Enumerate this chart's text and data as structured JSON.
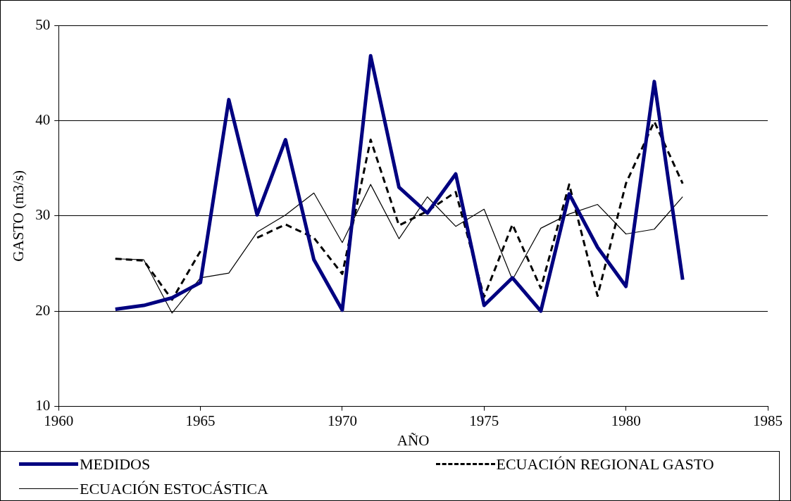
{
  "chart_data": {
    "type": "line",
    "xlabel": "AÑO",
    "ylabel": "GASTO (m3/s)",
    "x": [
      1962,
      1963,
      1964,
      1965,
      1966,
      1967,
      1968,
      1969,
      1970,
      1971,
      1972,
      1973,
      1974,
      1975,
      1976,
      1977,
      1978,
      1979,
      1980,
      1981,
      1982
    ],
    "xlim": [
      1960,
      1985
    ],
    "xticks": [
      1960,
      1965,
      1970,
      1975,
      1980,
      1985
    ],
    "ylim": [
      10,
      50
    ],
    "yticks": [
      10,
      20,
      30,
      40,
      50
    ],
    "grid": "y",
    "legend": "bottom",
    "marker": "none",
    "series": [
      {
        "name": "MEDIDOS",
        "color": "#000080",
        "line_style": "solid",
        "values": [
          20.2,
          20.6,
          21.4,
          23.0,
          42.2,
          30.1,
          38.0,
          25.4,
          20.1,
          46.8,
          33.0,
          30.3,
          34.4,
          20.6,
          23.5,
          20.0,
          32.3,
          26.7,
          22.6,
          44.1,
          23.3
        ]
      },
      {
        "name": "ECUACIÓN REGIONAL GASTO",
        "color": "#000000",
        "line_style": "dashed",
        "values": [
          25.5,
          25.3,
          21.2,
          26.3,
          null,
          27.7,
          29.1,
          27.7,
          23.9,
          38.0,
          29.0,
          30.5,
          32.5,
          21.5,
          29.1,
          22.4,
          33.3,
          21.6,
          33.4,
          39.9,
          33.4
        ]
      },
      {
        "name": "ECUACIÓN ESTOCÁSTICA",
        "color": "#000000",
        "line_style": "solid",
        "values": [
          25.5,
          25.4,
          19.8,
          23.5,
          24.0,
          28.3,
          30.1,
          32.4,
          27.2,
          33.3,
          27.6,
          32.0,
          28.9,
          30.7,
          23.3,
          28.7,
          30.2,
          31.2,
          28.1,
          28.6,
          32.0
        ]
      }
    ]
  }
}
